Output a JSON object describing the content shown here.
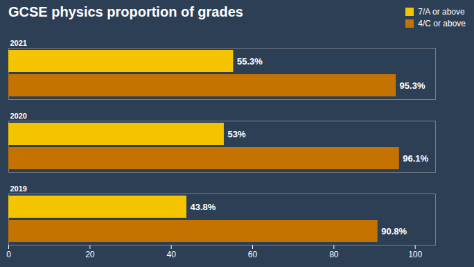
{
  "chart_data": {
    "type": "bar",
    "title": "GCSE physics proportion of grades",
    "orientation": "horizontal",
    "categories": [
      "2021",
      "2020",
      "2019"
    ],
    "series": [
      {
        "name": "7/A or above",
        "color": "#f5c400",
        "values": [
          55.3,
          53.0,
          43.8
        ],
        "value_labels": [
          "55.3%",
          "53%",
          "43.8%"
        ]
      },
      {
        "name": "4/C or above",
        "color": "#c47200",
        "values": [
          95.3,
          96.1,
          90.8
        ],
        "value_labels": [
          "95.3%",
          "96.1%",
          "90.8%"
        ]
      }
    ],
    "xlim": [
      0,
      105
    ],
    "xticks": [
      0,
      20,
      40,
      60,
      80,
      100
    ],
    "data_labels": true,
    "legend": "upper right",
    "grid": false
  }
}
